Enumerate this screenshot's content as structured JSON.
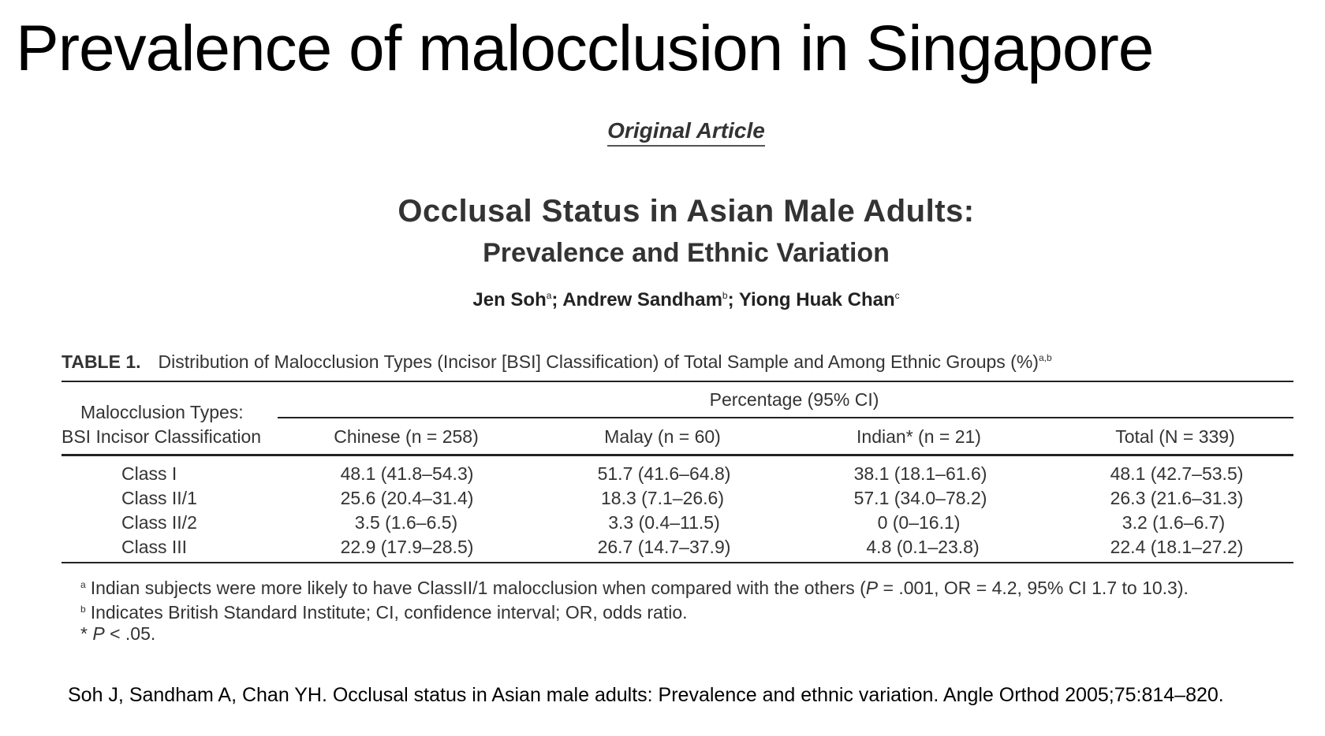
{
  "slide": {
    "title": "Prevalence of malocclusion in Singapore",
    "citation": "Soh J, Sandham A, Chan YH. Occlusal status in Asian male adults: Prevalence and ethnic variation. Angle Orthod 2005;75:814–820."
  },
  "article": {
    "section": "Original Article",
    "title": "Occlusal Status in Asian Male Adults:",
    "subtitle": "Prevalence and Ethnic Variation",
    "authors": [
      {
        "name": "Jen Soh",
        "sup": "a",
        "sep": "; "
      },
      {
        "name": "Andrew Sandham",
        "sup": "b",
        "sep": "; "
      },
      {
        "name": "Yiong Huak Chan",
        "sup": "c",
        "sep": ""
      }
    ]
  },
  "table": {
    "label": "TABLE 1.",
    "caption": "Distribution of Malocclusion Types (Incisor [BSI] Classification) of Total Sample and Among Ethnic Groups (%)",
    "caption_sup": "a,b",
    "row_header_line1": "Malocclusion Types:",
    "row_header_line2": "BSI Incisor Classification",
    "group_header": "Percentage (95% CI)",
    "columns": [
      "Chinese (n = 258)",
      "Malay (n = 60)",
      "Indian* (n = 21)",
      "Total (N = 339)"
    ],
    "rows": [
      {
        "label": "Class I",
        "values": [
          "48.1 (41.8–54.3)",
          "51.7 (41.6–64.8)",
          "38.1 (18.1–61.6)",
          "48.1 (42.7–53.5)"
        ]
      },
      {
        "label": "Class II/1",
        "values": [
          "25.6 (20.4–31.4)",
          "18.3 (7.1–26.6)",
          "57.1 (34.0–78.2)",
          "26.3 (21.6–31.3)"
        ]
      },
      {
        "label": "Class II/2",
        "values": [
          "3.5 (1.6–6.5)",
          "3.3 (0.4–11.5)",
          "0    (0–16.1)",
          "3.2 (1.6–6.7)"
        ]
      },
      {
        "label": "Class III",
        "values": [
          "22.9 (17.9–28.5)",
          "26.7 (14.7–37.9)",
          "4.8 (0.1–23.8)",
          "22.4 (18.1–27.2)"
        ]
      }
    ],
    "footnotes": {
      "a_mark": "a",
      "a_text_1": "Indian subjects were more likely to have ClassII/1 malocclusion when compared with the others (",
      "a_p": "P",
      "a_text_2": " = .001, OR = 4.2, 95% CI 1.7 to 10.3).",
      "b_mark": "b",
      "b_text": "Indicates British Standard Institute; CI, confidence interval; OR, odds ratio.",
      "star_mark": "* ",
      "star_p": "P",
      "star_text": " < .05."
    }
  }
}
